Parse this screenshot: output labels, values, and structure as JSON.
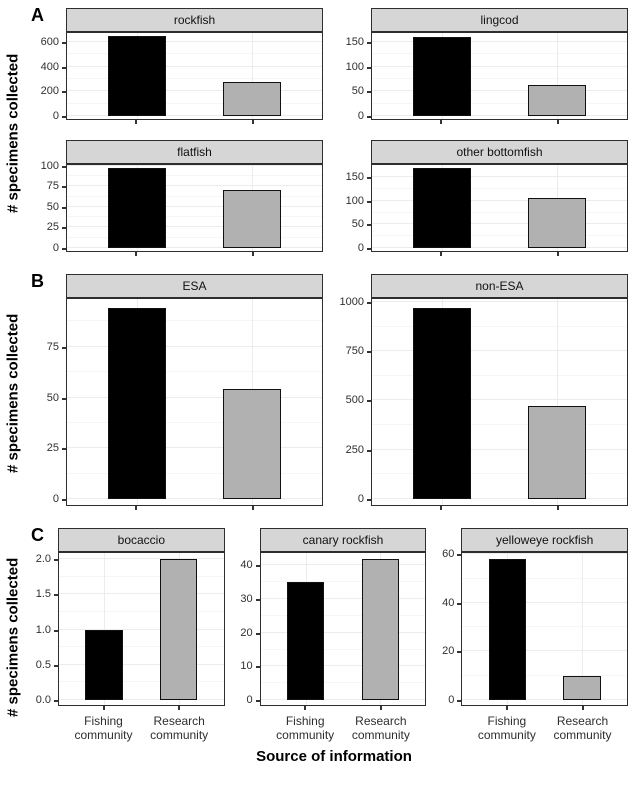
{
  "figure": {
    "ylabel": "# specimens collected",
    "xlabel": "Source of information",
    "categories": [
      "Fishing\ncommunity",
      "Research\ncommunity"
    ],
    "series": [
      {
        "name": "Fishing community",
        "color": "#000000"
      },
      {
        "name": "Research community",
        "color": "#b1b1b1"
      }
    ],
    "colors": {
      "bar_fishing": "#000000",
      "bar_research": "#b1b1b1",
      "bar_outline": "#111111",
      "strip_bg": "#d6d6d6",
      "panel_border": "#2e2e2e",
      "grid_major": "#ececec",
      "grid_minor": "#f6f6f6"
    }
  },
  "chart_data": [
    {
      "type": "bar",
      "tag": "A",
      "legend_position": "none",
      "grid": true,
      "categories": [
        "Fishing community",
        "Research community"
      ],
      "facets": [
        {
          "title": "rockfish",
          "ymax": 680,
          "tick_values": [
            0,
            200,
            400,
            600
          ],
          "tick_labels": [
            "0",
            "200",
            "400",
            "600"
          ],
          "values": [
            650,
            275
          ]
        },
        {
          "title": "lingcod",
          "ymax": 170,
          "tick_values": [
            0,
            50,
            100,
            150
          ],
          "tick_labels": [
            "0",
            "50",
            "100",
            "150"
          ],
          "values": [
            160,
            62
          ]
        },
        {
          "title": "flatfish",
          "ymax": 102,
          "tick_values": [
            0,
            25,
            50,
            75,
            100
          ],
          "tick_labels": [
            "0",
            "25",
            "50",
            "75",
            "100"
          ],
          "values": [
            97,
            70
          ]
        },
        {
          "title": "other bottomfish",
          "ymax": 178,
          "tick_values": [
            0,
            50,
            100,
            150
          ],
          "tick_labels": [
            "0",
            "50",
            "100",
            "150"
          ],
          "values": [
            170,
            107
          ]
        }
      ]
    },
    {
      "type": "bar",
      "tag": "B",
      "legend_position": "none",
      "grid": true,
      "categories": [
        "Fishing community",
        "Research community"
      ],
      "facets": [
        {
          "title": "ESA",
          "ymax": 99,
          "tick_values": [
            0,
            25,
            50,
            75
          ],
          "tick_labels": [
            "0",
            "25",
            "50",
            "75"
          ],
          "values": [
            94,
            54
          ]
        },
        {
          "title": "non-ESA",
          "ymax": 1020,
          "tick_values": [
            0,
            250,
            500,
            750,
            1000
          ],
          "tick_labels": [
            "0",
            "250",
            "500",
            "750",
            "1000"
          ],
          "values": [
            970,
            470
          ]
        }
      ]
    },
    {
      "type": "bar",
      "tag": "C",
      "legend_position": "none",
      "grid": true,
      "categories": [
        "Fishing community",
        "Research community"
      ],
      "facets": [
        {
          "title": "bocaccio",
          "ymax": 2.1,
          "tick_values": [
            0,
            0.5,
            1,
            1.5,
            2
          ],
          "tick_labels": [
            "0.0",
            "0.5",
            "1.0",
            "1.5",
            "2.0"
          ],
          "values": [
            1,
            2
          ]
        },
        {
          "title": "canary rockfish",
          "ymax": 44,
          "tick_values": [
            0,
            10,
            20,
            30,
            40
          ],
          "tick_labels": [
            "0",
            "10",
            "20",
            "30",
            "40"
          ],
          "values": [
            35,
            42
          ]
        },
        {
          "title": "yelloweye rockfish",
          "ymax": 61,
          "tick_values": [
            0,
            20,
            40,
            60
          ],
          "tick_labels": [
            "0",
            "20",
            "40",
            "60"
          ],
          "values": [
            58,
            10
          ]
        }
      ]
    }
  ]
}
